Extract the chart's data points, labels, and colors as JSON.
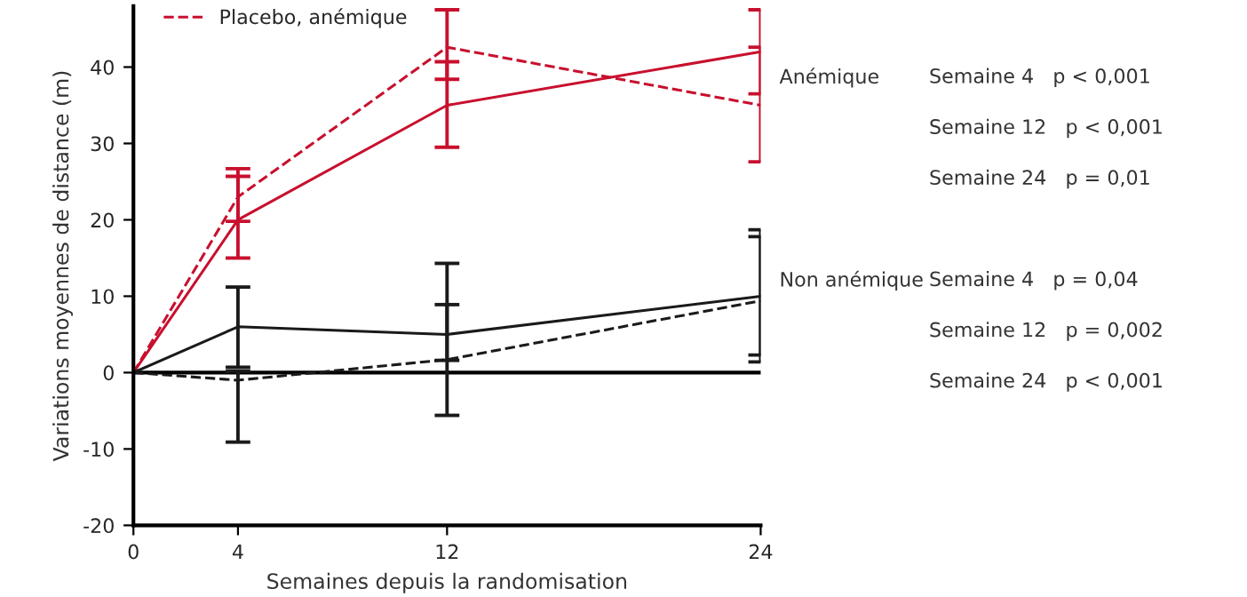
{
  "chart_data": {
    "type": "line",
    "xlabel": "Semaines depuis la randomisation",
    "ylabel": "Variations moyennes de distance (m)",
    "xlim": [
      0,
      24
    ],
    "xticks": [
      0,
      4,
      12,
      24
    ],
    "ylim": [
      -20,
      48
    ],
    "yticks": [
      -20,
      -10,
      0,
      10,
      20,
      30,
      40
    ],
    "x": [
      0,
      4,
      12,
      24
    ],
    "series": [
      {
        "color": "#c8102e",
        "line_style": "solid",
        "values": [
          0,
          20,
          35,
          42
        ],
        "errors": [
          null,
          [
            15,
            25.7
          ],
          [
            29.5,
            40.7
          ],
          [
            36.5,
            47.5
          ]
        ]
      },
      {
        "name": "Placebo, anémique",
        "color": "#c8102e",
        "line_style": "dashed",
        "values": [
          0,
          23,
          42.6,
          35
        ],
        "errors": [
          null,
          [
            19.8,
            26.7
          ],
          [
            38.4,
            47.5
          ],
          [
            27.6,
            42.6
          ]
        ]
      },
      {
        "color": "#1a1a1a",
        "line_style": "solid",
        "values": [
          0,
          6,
          5,
          10
        ],
        "errors": [
          null,
          [
            0.7,
            11.2
          ],
          [
            1.6,
            8.9
          ],
          [
            1.4,
            18.7
          ]
        ]
      },
      {
        "color": "#1a1a1a",
        "line_style": "dashed",
        "values": [
          0,
          -1,
          1.7,
          9.4
        ],
        "errors": [
          null,
          [
            -9.1,
            0.2
          ],
          [
            -5.6,
            14.3
          ],
          [
            2.3,
            17.8
          ]
        ]
      }
    ],
    "ref_lines": [
      {
        "axis": "y",
        "value": 0,
        "color": "#000000",
        "line_style": "solid"
      }
    ],
    "annotations": [
      "Anémique",
      "Semaine 4   p < 0,001",
      "Semaine 12   p < 0,001",
      "Semaine 24   p = 0,01",
      "Non anémique",
      "Semaine 4   p = 0,04",
      "Semaine 12   p = 0,002",
      "Semaine 24   p < 0,001"
    ],
    "legend": "top left",
    "grid": false,
    "marker": "none"
  }
}
